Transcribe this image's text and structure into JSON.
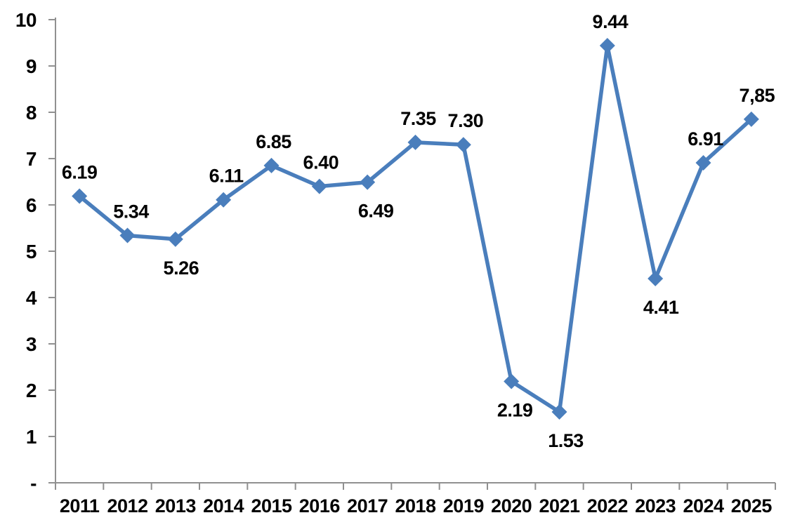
{
  "chart_data": {
    "type": "line",
    "categories": [
      "2011",
      "2012",
      "2013",
      "2014",
      "2015",
      "2016",
      "2017",
      "2018",
      "2019",
      "2020",
      "2021",
      "2022",
      "2023",
      "2024",
      "2025"
    ],
    "values": [
      6.19,
      5.34,
      5.26,
      6.11,
      6.85,
      6.4,
      6.49,
      7.35,
      7.3,
      2.19,
      1.53,
      9.44,
      4.41,
      6.91,
      7.85
    ],
    "labels": [
      "6.19",
      "5.34",
      "5.26",
      "6.11",
      "6.85",
      "6.40",
      "6.49",
      "7.35",
      "7.30",
      "2.19",
      "1.53",
      "9.44",
      "4.41",
      "6.91",
      "7,85"
    ],
    "label_positions": [
      "above",
      "above",
      "below",
      "above",
      "above",
      "above",
      "below",
      "above",
      "above",
      "below",
      "below",
      "above",
      "below",
      "above",
      "above"
    ],
    "label_dx": [
      0,
      5,
      8,
      4,
      3,
      2,
      12,
      4,
      3,
      5,
      9,
      4,
      8,
      3,
      8
    ],
    "y_ticks": [
      {
        "value": 0,
        "label": "-"
      },
      {
        "value": 1,
        "label": "1"
      },
      {
        "value": 2,
        "label": "2"
      },
      {
        "value": 3,
        "label": "3"
      },
      {
        "value": 4,
        "label": "4"
      },
      {
        "value": 5,
        "label": "5"
      },
      {
        "value": 6,
        "label": "6"
      },
      {
        "value": 7,
        "label": "7"
      },
      {
        "value": 8,
        "label": "8"
      },
      {
        "value": 9,
        "label": "9"
      },
      {
        "value": 10,
        "label": "10"
      }
    ],
    "ylim": [
      0,
      10
    ],
    "grid": false,
    "legend": "none",
    "marker": "diamond",
    "colors": {
      "line": "#4A7EBC",
      "marker": "#4A7EBC",
      "axis": "#909090",
      "text": "#000000",
      "background": "#FFFFFF"
    }
  }
}
